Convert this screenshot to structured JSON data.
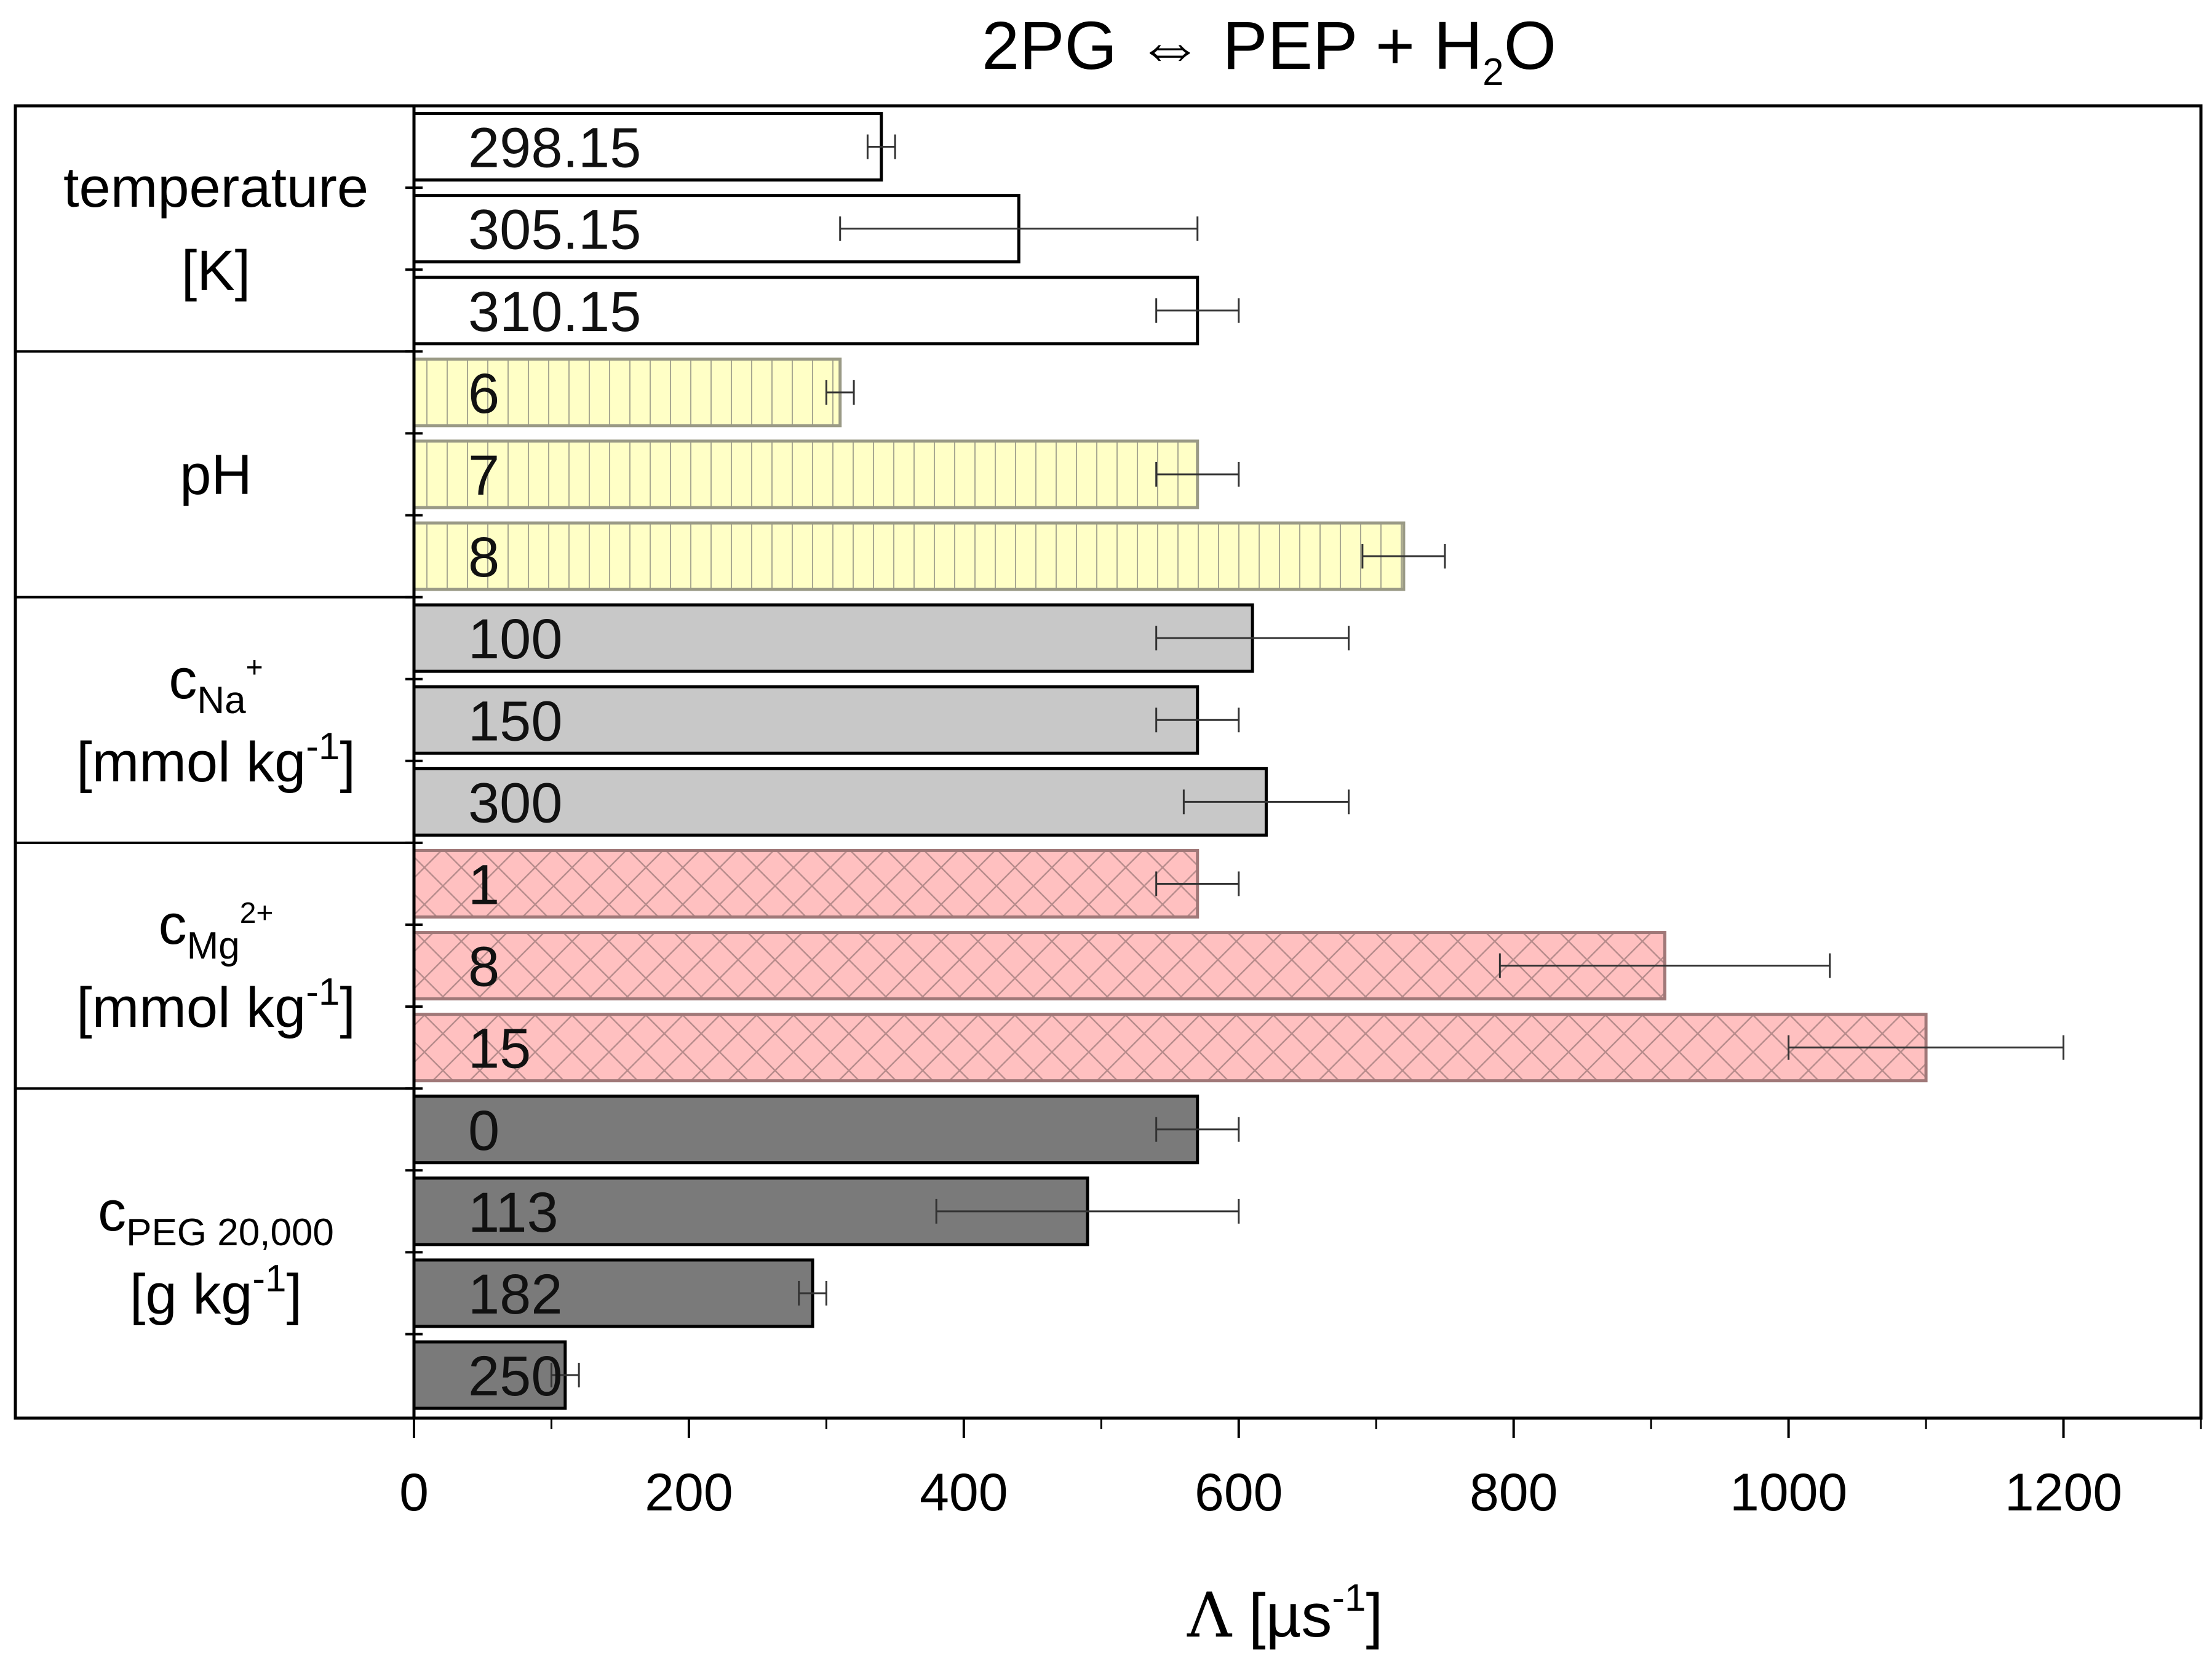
{
  "chart_data": {
    "type": "bar",
    "orientation": "horizontal",
    "title": {
      "prefix": "2PG ",
      "arrow": "⇔",
      "middle": " PEP + H",
      "sub": "2",
      "suffix": "O"
    },
    "xlabel": {
      "symbol": "Λ",
      "unit_open": " [µs",
      "unit_sup": "-1",
      "unit_close": "]"
    },
    "xlim": [
      0,
      1300
    ],
    "xticks": [
      0,
      200,
      400,
      600,
      800,
      1000,
      1200
    ],
    "groups": [
      {
        "key": "temperature",
        "label_lines": [
          {
            "main": "temperature"
          },
          {
            "main": "[K]"
          }
        ],
        "fill": "#ffffff",
        "stroke": "#000000",
        "pattern": "none",
        "bars": [
          {
            "label": "298.15",
            "value": 340,
            "err_low": 330,
            "err_high": 350
          },
          {
            "label": "305.15",
            "value": 440,
            "err_low": 310,
            "err_high": 570
          },
          {
            "label": "310.15",
            "value": 570,
            "err_low": 540,
            "err_high": 600
          }
        ]
      },
      {
        "key": "ph",
        "label_lines": [
          {
            "main": "pH"
          }
        ],
        "fill": "#ffffc6",
        "stroke": "#9a9a86",
        "pattern": "vertical",
        "bars": [
          {
            "label": "6",
            "value": 310,
            "err_low": 300,
            "err_high": 320
          },
          {
            "label": "7",
            "value": 570,
            "err_low": 540,
            "err_high": 600
          },
          {
            "label": "8",
            "value": 720,
            "err_low": 690,
            "err_high": 750
          }
        ]
      },
      {
        "key": "na",
        "label_lines": [
          {
            "main": "c",
            "sub": "Na",
            "sup": "+"
          },
          {
            "main": "[mmol kg",
            "sup": "-1",
            "tail": "]"
          }
        ],
        "fill": "#c8c8c8",
        "stroke": "#000000",
        "pattern": "none",
        "bars": [
          {
            "label": "100",
            "value": 610,
            "err_low": 540,
            "err_high": 680
          },
          {
            "label": "150",
            "value": 570,
            "err_low": 540,
            "err_high": 600
          },
          {
            "label": "300",
            "value": 620,
            "err_low": 560,
            "err_high": 680
          }
        ]
      },
      {
        "key": "mg",
        "label_lines": [
          {
            "main": "c",
            "sub": "Mg",
            "sup": "2+"
          },
          {
            "main": "[mmol kg",
            "sup": "-1",
            "tail": "]"
          }
        ],
        "fill": "#ffc0c0",
        "stroke": "#a07878",
        "pattern": "crosshatch",
        "bars": [
          {
            "label": "1",
            "value": 570,
            "err_low": 540,
            "err_high": 600
          },
          {
            "label": "8",
            "value": 910,
            "err_low": 790,
            "err_high": 1030
          },
          {
            "label": "15",
            "value": 1100,
            "err_low": 1000,
            "err_high": 1200
          }
        ]
      },
      {
        "key": "peg",
        "label_lines": [
          {
            "main": "c",
            "sub": "PEG 20,000"
          },
          {
            "main": "[g kg",
            "sup": "-1",
            "tail": "]"
          }
        ],
        "fill": "#7a7a7a",
        "stroke": "#000000",
        "pattern": "none",
        "bars": [
          {
            "label": "0",
            "value": 570,
            "err_low": 540,
            "err_high": 600
          },
          {
            "label": "113",
            "value": 490,
            "err_low": 380,
            "err_high": 600
          },
          {
            "label": "182",
            "value": 290,
            "err_low": 280,
            "err_high": 300
          },
          {
            "label": "250",
            "value": 110,
            "err_low": 100,
            "err_high": 120
          }
        ]
      }
    ]
  }
}
